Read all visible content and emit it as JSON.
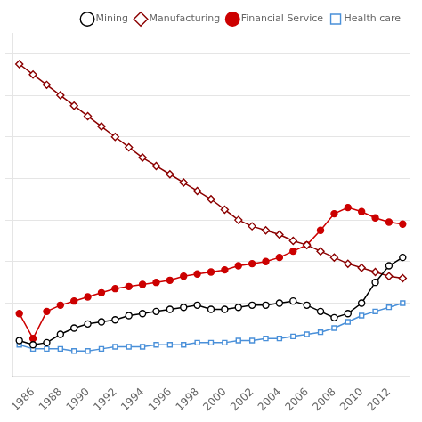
{
  "chart_data": {
    "type": "line",
    "x": [
      1985,
      1986,
      1987,
      1988,
      1989,
      1990,
      1991,
      1992,
      1993,
      1994,
      1995,
      1996,
      1997,
      1998,
      1999,
      2000,
      2001,
      2002,
      2003,
      2004,
      2005,
      2006,
      2007,
      2008,
      2009,
      2010,
      2011,
      2012,
      2013
    ],
    "series": [
      {
        "name": "Mining",
        "color": "#000000",
        "marker": "open_circle",
        "values": [
          4.2,
          4.0,
          4.1,
          4.5,
          4.8,
          5.0,
          5.1,
          5.2,
          5.4,
          5.5,
          5.6,
          5.7,
          5.8,
          5.9,
          5.7,
          5.7,
          5.8,
          5.9,
          5.9,
          6.0,
          6.1,
          5.9,
          5.6,
          5.3,
          5.5,
          6.0,
          7.0,
          7.8,
          8.2
        ]
      },
      {
        "name": "Manufacturing",
        "color": "#8B0000",
        "marker": "open_diamond",
        "values": [
          17.5,
          17.0,
          16.5,
          16.0,
          15.5,
          15.0,
          14.5,
          14.0,
          13.5,
          13.0,
          12.6,
          12.2,
          11.8,
          11.4,
          11.0,
          10.5,
          10.0,
          9.7,
          9.5,
          9.3,
          9.0,
          8.8,
          8.5,
          8.2,
          7.9,
          7.7,
          7.5,
          7.3,
          7.2
        ]
      },
      {
        "name": "Financial Service",
        "color": "#CC0000",
        "marker": "circle",
        "values": [
          5.5,
          4.3,
          5.6,
          5.9,
          6.1,
          6.3,
          6.5,
          6.7,
          6.8,
          6.9,
          7.0,
          7.1,
          7.3,
          7.4,
          7.5,
          7.6,
          7.8,
          7.9,
          8.0,
          8.2,
          8.5,
          8.8,
          9.5,
          10.3,
          10.6,
          10.4,
          10.1,
          9.9,
          9.8
        ]
      },
      {
        "name": "Health care",
        "color": "#4A90D9",
        "marker": "open_square",
        "values": [
          4.0,
          3.8,
          3.8,
          3.8,
          3.7,
          3.7,
          3.8,
          3.9,
          3.9,
          3.9,
          4.0,
          4.0,
          4.0,
          4.1,
          4.1,
          4.1,
          4.2,
          4.2,
          4.3,
          4.3,
          4.4,
          4.5,
          4.6,
          4.8,
          5.1,
          5.4,
          5.6,
          5.8,
          6.0
        ]
      }
    ],
    "xlim": [
      1984.5,
      2013.5
    ],
    "xticks": [
      1986,
      1988,
      1990,
      1992,
      1994,
      1996,
      1998,
      2000,
      2002,
      2004,
      2006,
      2008,
      2010,
      2012
    ],
    "ylim": [
      2.5,
      19.0
    ],
    "yticks": [
      4,
      6,
      8,
      10,
      12,
      14,
      16,
      18
    ],
    "tick_labels": "x",
    "grid": "y",
    "legend": "upper right"
  }
}
